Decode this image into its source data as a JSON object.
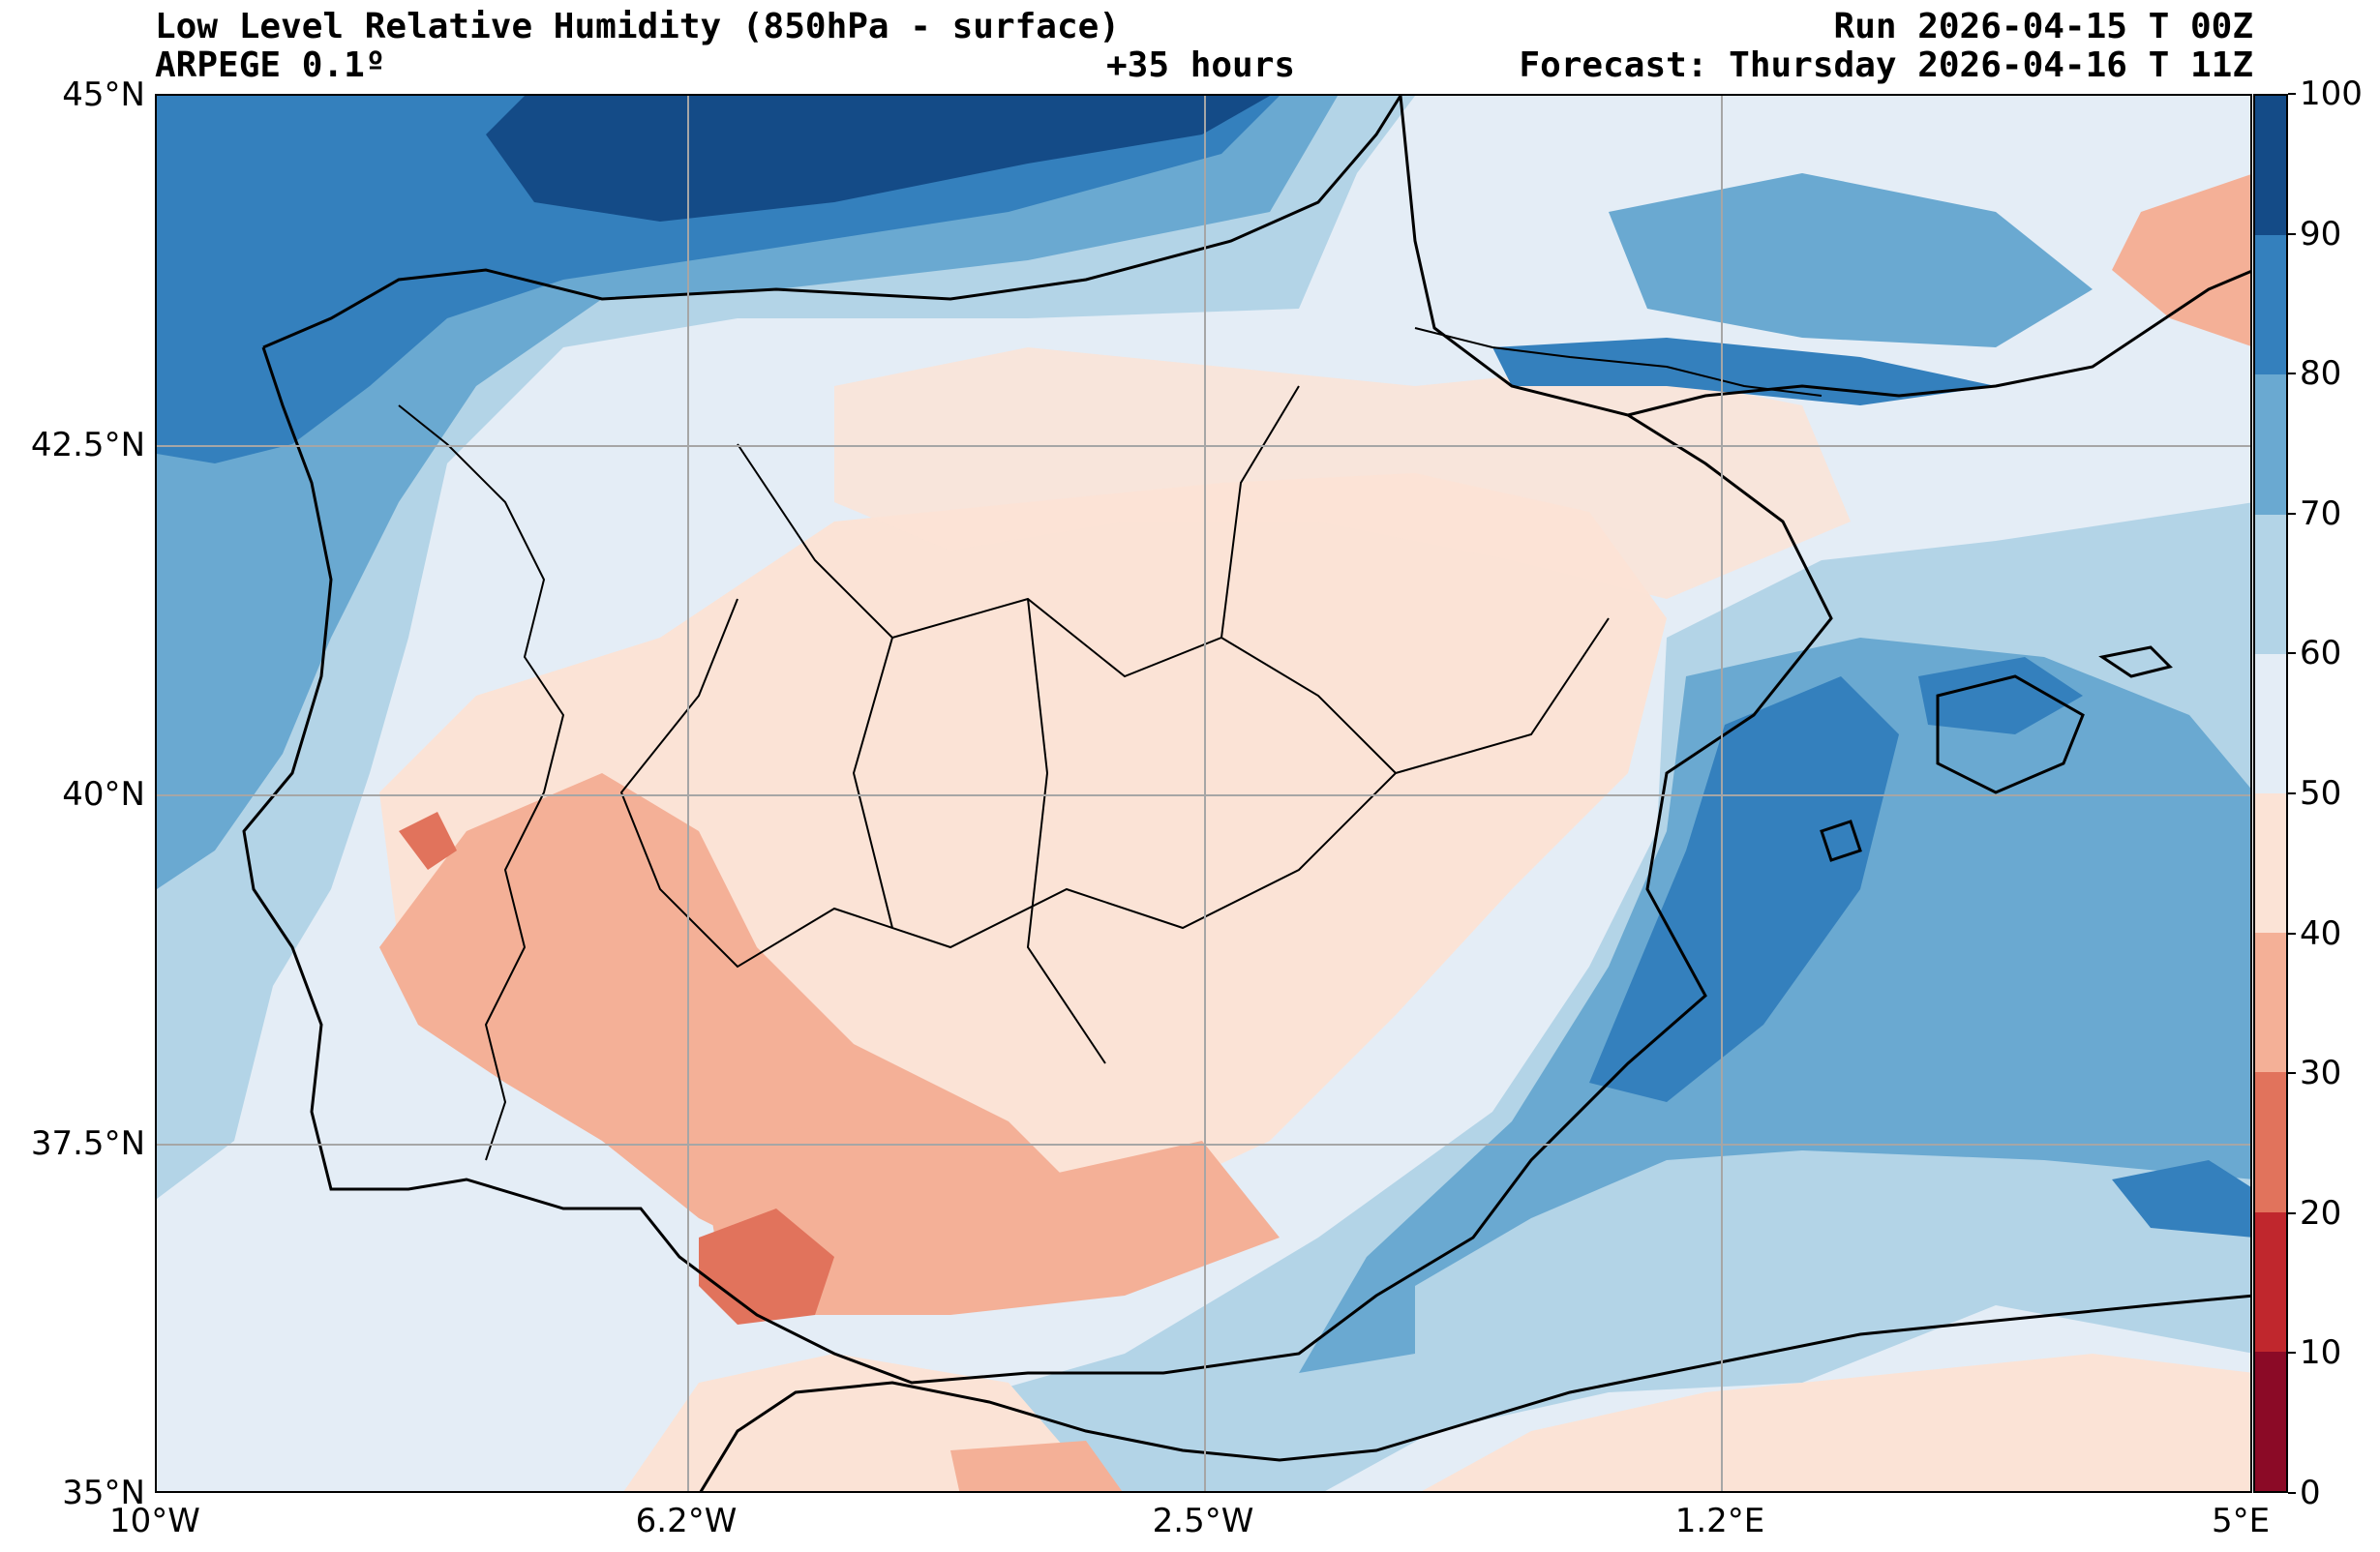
{
  "header": {
    "title": "Low Level Relative Humidity (850hPa - surface)",
    "model": "ARPEGE 0.1º",
    "lead_time": "+35 hours",
    "run": "Run 2026-04-15 T 00Z",
    "forecast": "Forecast: Thursday 2026-04-16 T 11Z"
  },
  "axes": {
    "lat_labels": [
      "45°N",
      "42.5°N",
      "40°N",
      "37.5°N",
      "35°N"
    ],
    "lon_labels": [
      "10°W",
      "6.2°W",
      "2.5°W",
      "1.2°E",
      "5°E"
    ]
  },
  "map": {
    "extent": {
      "lon_min": -10,
      "lon_max": 5,
      "lat_min": 35,
      "lat_max": 45
    },
    "gridlines": true,
    "humid_region": "Atlantic coast and Bay of Biscay (70-100%)",
    "dry_region": "Interior Iberia and southern Spain (30-50%)",
    "mediterranean": "Western Mediterranean (60-90%)"
  },
  "colorbar": {
    "levels": [
      0,
      10,
      20,
      30,
      40,
      50,
      60,
      70,
      80,
      90,
      100
    ],
    "labels": [
      "100",
      "90",
      "80",
      "70",
      "60",
      "50",
      "40",
      "30",
      "20",
      "10",
      "0"
    ],
    "colors": [
      "#8b0a26",
      "#c0272d",
      "#e1735c",
      "#f4b097",
      "#fbe3d6",
      "#e4edf6",
      "#b3d4e7",
      "#6aa9d1",
      "#3480bd",
      "#144b87"
    ]
  }
}
